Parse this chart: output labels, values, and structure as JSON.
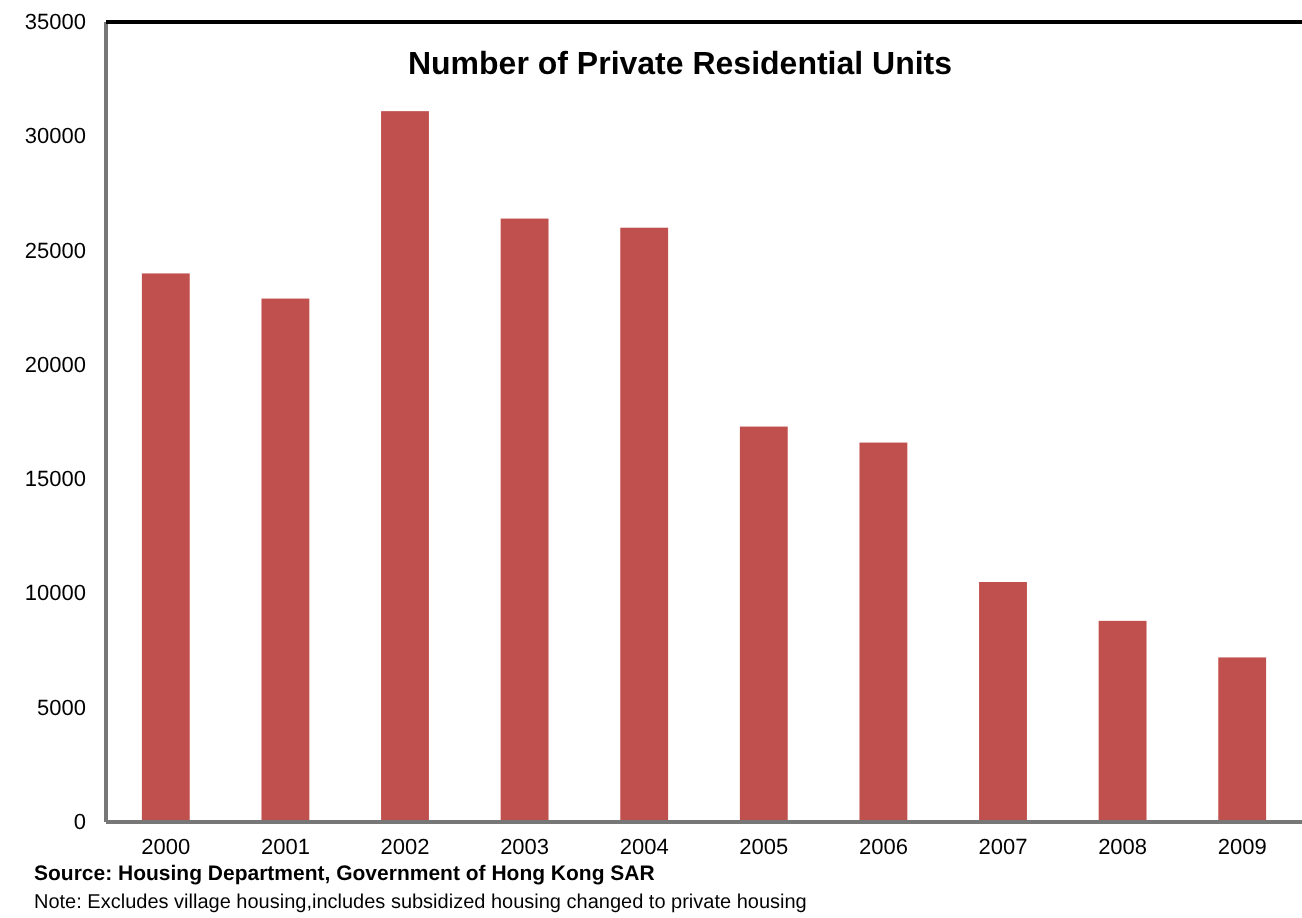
{
  "chart_data": {
    "type": "bar",
    "title": "Number of Private Residential Units",
    "categories": [
      "2000",
      "2001",
      "2002",
      "2003",
      "2004",
      "2005",
      "2006",
      "2007",
      "2008",
      "2009"
    ],
    "values": [
      24000,
      22900,
      31100,
      26400,
      26000,
      17300,
      16600,
      10500,
      8800,
      7200
    ],
    "color": "#c0504d",
    "ylim": [
      0,
      35000
    ],
    "yticks": [
      0,
      5000,
      10000,
      15000,
      20000,
      25000,
      30000,
      35000
    ],
    "grid": false,
    "annotations": [
      "Source: Housing Department, Government of Hong Kong SAR",
      "Note: Excludes village housing,includes subsidized housing changed to private housing"
    ]
  }
}
